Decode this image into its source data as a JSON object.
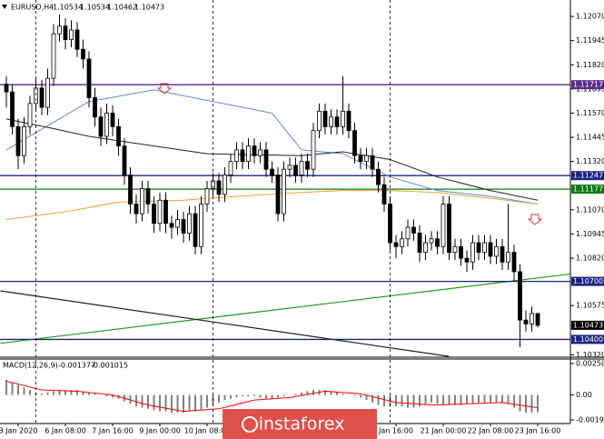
{
  "chart_data": [
    {
      "type": "candlestick",
      "title": "EURUSD,H4",
      "categories": [
        null,
        null,
        "3 Jan 2020",
        null,
        null,
        null,
        null,
        null,
        null,
        null,
        "6 Jan 08:00",
        null,
        null,
        null,
        null,
        null,
        null,
        null,
        "7 Jan 16:00",
        null,
        null,
        null,
        null,
        null,
        null,
        null,
        "9 Jan 00:00",
        null,
        null,
        null,
        null,
        null,
        null,
        null,
        "10 Jan 08:00",
        null,
        null,
        null,
        null,
        null,
        null,
        null,
        null,
        null,
        null,
        null,
        null,
        null,
        null,
        null,
        null,
        null,
        null,
        null,
        null,
        null,
        null,
        null,
        null,
        null,
        null,
        null,
        null,
        null,
        null,
        null,
        "Jan 16:00",
        null,
        null,
        null,
        null,
        null,
        null,
        null,
        "21 Jan 00:00",
        null,
        null,
        null,
        null,
        null,
        null,
        null,
        "22 Jan 08:00",
        null,
        null,
        null,
        null,
        null,
        null,
        null,
        "23 Jan 16:00"
      ],
      "open": [
        1.1172,
        1.1168,
        1.115,
        1.1135,
        1.115,
        1.1162,
        1.117,
        1.116,
        1.1175,
        1.1198,
        1.1202,
        1.1195,
        1.12,
        1.119,
        1.1185,
        1.1165,
        1.1155,
        1.1145,
        1.1157,
        1.115,
        1.114,
        1.1125,
        1.111,
        1.1105,
        1.1118,
        1.111,
        1.11,
        1.1112,
        1.11,
        1.1098,
        1.1102,
        1.1095,
        1.1105,
        1.1088,
        1.111,
        1.1118,
        1.1122,
        1.1115,
        1.1125,
        1.1132,
        1.1138,
        1.1132,
        1.114,
        1.1135,
        1.1138,
        1.1128,
        1.1125,
        1.1105,
        1.1128,
        1.113,
        1.1125,
        1.1132,
        1.1128,
        1.1148,
        1.1158,
        1.115,
        1.1155,
        1.115,
        1.1158,
        1.1148,
        1.1135,
        1.1132,
        1.1135,
        1.1128,
        1.112,
        1.111,
        1.109,
        1.1088,
        1.1092,
        1.1098,
        1.1095,
        1.1085,
        1.109,
        1.1092,
        1.1088,
        1.111,
        1.1085,
        1.1088,
        1.1082,
        1.108,
        1.109,
        1.1085,
        1.109,
        1.1083,
        1.1088,
        1.108,
        1.1085,
        1.1075,
        1.105,
        1.1048,
        1.10534
      ],
      "high": [
        1.1176,
        1.1172,
        1.1154,
        1.1155,
        1.1166,
        1.1175,
        1.1174,
        1.118,
        1.1203,
        1.1208,
        1.1206,
        1.1205,
        1.1204,
        1.1195,
        1.1189,
        1.117,
        1.116,
        1.1162,
        1.1161,
        1.1154,
        1.1144,
        1.1129,
        1.1115,
        1.1122,
        1.1122,
        1.1114,
        1.1116,
        1.1116,
        1.1104,
        1.1107,
        1.1106,
        1.1109,
        1.1109,
        1.1114,
        1.1122,
        1.1126,
        1.1126,
        1.1129,
        1.1136,
        1.1142,
        1.1142,
        1.1144,
        1.1144,
        1.1142,
        1.1142,
        1.1132,
        1.1129,
        1.1132,
        1.1134,
        1.1134,
        1.1136,
        1.1136,
        1.1152,
        1.1162,
        1.1162,
        1.1159,
        1.1159,
        1.1176,
        1.1162,
        1.1152,
        1.1139,
        1.1139,
        1.1139,
        1.1132,
        1.1124,
        1.1114,
        1.1094,
        1.1096,
        1.1102,
        1.1102,
        1.1099,
        1.1094,
        1.1096,
        1.1096,
        1.1114,
        1.1114,
        1.1092,
        1.1092,
        1.1086,
        1.1094,
        1.1094,
        1.1094,
        1.1094,
        1.1092,
        1.1092,
        1.111,
        1.1089,
        1.1079,
        1.1055,
        1.1057,
        1.10534
      ],
      "low": [
        1.116,
        1.1146,
        1.1128,
        1.1131,
        1.1146,
        1.1158,
        1.1156,
        1.1156,
        1.1171,
        1.1194,
        1.119,
        1.1191,
        1.1186,
        1.118,
        1.116,
        1.115,
        1.114,
        1.1141,
        1.1145,
        1.1135,
        1.112,
        1.1105,
        1.11,
        1.1101,
        1.1105,
        1.1095,
        1.1096,
        1.1095,
        1.1092,
        1.1094,
        1.109,
        1.1091,
        1.1084,
        1.1084,
        1.1106,
        1.1114,
        1.1111,
        1.1111,
        1.1121,
        1.1128,
        1.1128,
        1.1128,
        1.1131,
        1.1131,
        1.1124,
        1.1121,
        1.1101,
        1.1101,
        1.1124,
        1.1121,
        1.1121,
        1.1124,
        1.1124,
        1.1144,
        1.1146,
        1.1146,
        1.1146,
        1.1146,
        1.1144,
        1.1131,
        1.1128,
        1.1128,
        1.1124,
        1.1116,
        1.1106,
        1.1086,
        1.1082,
        1.1084,
        1.1088,
        1.1091,
        1.108,
        1.1081,
        1.1086,
        1.1084,
        1.1084,
        1.1081,
        1.1081,
        1.1078,
        1.1075,
        1.1076,
        1.1081,
        1.1081,
        1.1079,
        1.1079,
        1.1076,
        1.1076,
        1.107,
        1.1036,
        1.1044,
        1.1044,
        1.10462
      ],
      "close": [
        1.1168,
        1.115,
        1.1135,
        1.115,
        1.1162,
        1.117,
        1.116,
        1.1175,
        1.1198,
        1.1202,
        1.1195,
        1.12,
        1.119,
        1.1185,
        1.1165,
        1.1155,
        1.1145,
        1.1157,
        1.115,
        1.114,
        1.1125,
        1.111,
        1.1105,
        1.1118,
        1.111,
        1.11,
        1.1112,
        1.11,
        1.1098,
        1.1102,
        1.1095,
        1.1105,
        1.1088,
        1.111,
        1.1118,
        1.1122,
        1.1115,
        1.1125,
        1.1132,
        1.1138,
        1.1132,
        1.114,
        1.1135,
        1.1138,
        1.1128,
        1.1125,
        1.1105,
        1.1128,
        1.113,
        1.1125,
        1.1132,
        1.1128,
        1.1148,
        1.1158,
        1.115,
        1.1155,
        1.115,
        1.1158,
        1.1148,
        1.1135,
        1.1132,
        1.1135,
        1.1128,
        1.112,
        1.111,
        1.109,
        1.1088,
        1.1092,
        1.1098,
        1.1095,
        1.1085,
        1.109,
        1.1092,
        1.1088,
        1.111,
        1.1085,
        1.1088,
        1.1082,
        1.108,
        1.109,
        1.1085,
        1.109,
        1.1083,
        1.1088,
        1.108,
        1.1085,
        1.1075,
        1.105,
        1.1048,
        1.10534,
        1.10473
      ],
      "bull_color": "#ffffff",
      "bear_color": "#000000",
      "current_price_color": "#000000",
      "ylim": [
        1.10308,
        1.12155
      ],
      "yticks": [
        {
          "value": 1.1207,
          "label": "1.12070"
        },
        {
          "value": 1.11945,
          "label": "1.11945"
        },
        {
          "value": 1.1182,
          "label": "1.11820"
        },
        {
          "value": 1.11695,
          "label": "1.11695"
        },
        {
          "value": 1.1157,
          "label": "1.11570"
        },
        {
          "value": 1.11445,
          "label": "1.11445"
        },
        {
          "value": 1.1132,
          "label": "1.11320"
        },
        {
          "value": 1.1107,
          "label": "1.11070"
        },
        {
          "value": 1.10945,
          "label": "1.10945"
        },
        {
          "value": 1.1082,
          "label": "1.10820"
        },
        {
          "value": 1.10575,
          "label": "1.10575"
        },
        {
          "value": 1.1032,
          "label": "1.10320"
        }
      ],
      "moving_averages": [
        {
          "color": "#5b8bd6",
          "x": [
            0,
            14,
            25,
            45,
            50,
            57,
            65,
            73,
            82,
            90
          ],
          "values": [
            1.1138,
            1.1163,
            1.1169,
            1.1157,
            1.1138,
            1.1136,
            1.1124,
            1.1117,
            1.1114,
            1.111
          ]
        },
        {
          "color": "#222222",
          "x": [
            0,
            8,
            14,
            25,
            34,
            50,
            57,
            65,
            73,
            82,
            90
          ],
          "values": [
            1.1154,
            1.1149,
            1.1145,
            1.114,
            1.1136,
            1.1135,
            1.1137,
            1.1133,
            1.1124,
            1.1117,
            1.1112
          ]
        },
        {
          "color": "#f0a030",
          "x": [
            0,
            10,
            19,
            30,
            39,
            50,
            57,
            65,
            73,
            82,
            90
          ],
          "values": [
            1.1102,
            1.1106,
            1.1111,
            1.1112,
            1.1114,
            1.1116,
            1.1117,
            1.1117,
            1.1116,
            1.1113,
            1.111
          ]
        }
      ],
      "levels": [
        {
          "value": 1.11717,
          "label": "1.11717",
          "color": "#5a2a8a"
        },
        {
          "value": 1.11247,
          "label": "1.11247",
          "color": "#1c2480"
        },
        {
          "value": 1.11177,
          "label": "1.11177",
          "color": "#0b7a12"
        },
        {
          "value": 1.107,
          "label": "1.10700",
          "color": "#1c2480"
        },
        {
          "value": 1.104,
          "label": "1.10400",
          "color": "#1c2480"
        }
      ],
      "trendlines": [
        {
          "color": "#1e9a1e",
          "x": [
            -1,
            96
          ],
          "values": [
            1.1038,
            1.1074
          ]
        },
        {
          "color": "#222222",
          "x": [
            -1,
            75
          ],
          "values": [
            1.10651,
            1.10312
          ]
        }
      ],
      "separators": [
        5,
        35,
        65
      ]
    },
    {
      "type": "macd",
      "title": "MACD(12,26,9)",
      "color": "#808080",
      "values": [
        0.0012,
        0.001,
        0.0008,
        0.0006,
        0.0004,
        0.0002,
        0.0001,
        0.0002,
        0.0003,
        0.0004,
        0.0004,
        0.0004,
        0.0004,
        0.0003,
        0.0002,
        0.0001,
        0.0,
        -0.0001,
        -0.0002,
        -0.0003,
        -0.0005,
        -0.0007,
        -0.0009,
        -0.001,
        -0.0011,
        -0.0012,
        -0.0013,
        -0.0013,
        -0.0014,
        -0.0014,
        -0.0014,
        -0.0013,
        -0.0013,
        -0.0012,
        -0.001,
        -0.0008,
        -0.0006,
        -0.0004,
        -0.0003,
        -0.0002,
        -0.0001,
        -0.0001,
        -0.0001,
        -0.0002,
        -0.0003,
        -0.0003,
        -0.0002,
        -0.0001,
        0.0,
        0.0001,
        0.0002,
        0.0003,
        0.0004,
        0.0004,
        0.0004,
        0.0003,
        0.0002,
        0.0001,
        0.0,
        -0.0001,
        -0.0002,
        -0.0004,
        -0.0006,
        -0.0008,
        -0.0009,
        -0.0009,
        -0.0009,
        -0.0009,
        -0.001,
        -0.001,
        -0.0009,
        -0.0008,
        -0.0006,
        -0.0007,
        -0.0008,
        -0.0008,
        -0.0008,
        -0.0008,
        -0.0007,
        -0.0007,
        -0.0006,
        -0.0006,
        -0.0006,
        -0.0006,
        -0.0006,
        -0.0007,
        -0.001,
        -0.0013,
        -0.0014,
        -0.0014,
        -0.001377
      ],
      "signal": {
        "color": "#ff0000",
        "x": [
          0,
          6,
          12,
          18,
          24,
          30,
          36,
          42,
          48,
          54,
          60,
          66,
          72,
          78,
          84,
          90
        ],
        "values": [
          0.0011,
          0.0004,
          0.0003,
          0.0,
          -0.0008,
          -0.0013,
          -0.0011,
          -0.0004,
          -0.0002,
          0.0003,
          0.0001,
          -0.0006,
          -0.0008,
          -0.0007,
          -0.0006,
          -0.001015
        ]
      },
      "ylim": [
        -0.001982,
        0.002501
      ],
      "yticks": [
        0.002501,
        {
          "value": 0,
          "label": "0.00"
        },
        -0.001982
      ]
    }
  ],
  "watermark": "instaforex"
}
